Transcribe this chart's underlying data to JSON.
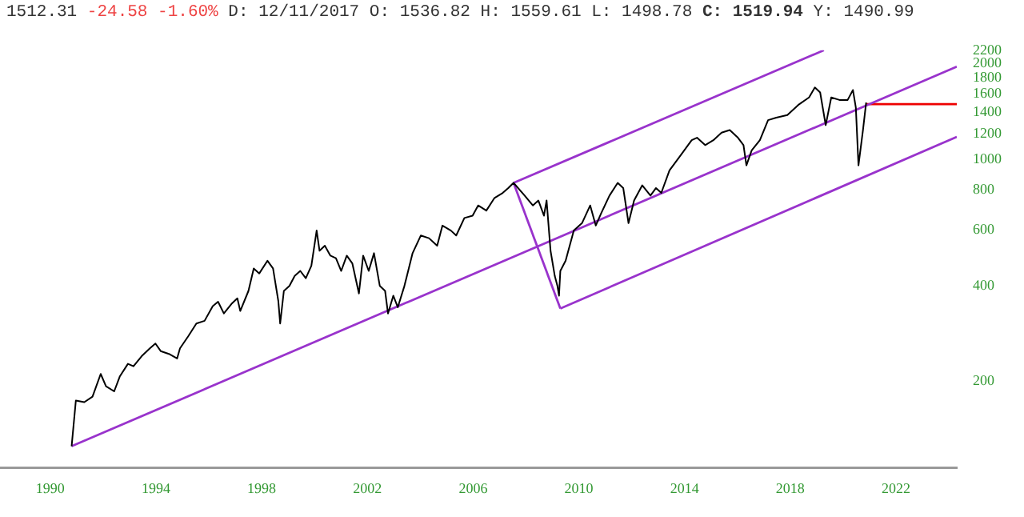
{
  "chart_data": {
    "type": "line",
    "title": "1512.31 -24.58 -1.60% D: 12/11/2017 O: 1536.82 H: 1559.61 L: 1498.78 C: 1519.94 Y: 1490.99",
    "xlim": [
      1988.1,
      2024.3
    ],
    "xticks": [
      1990,
      1994,
      1998,
      2002,
      2006,
      2010,
      2014,
      2018,
      2022
    ],
    "ylim": [
      107,
      2200
    ],
    "yticks": [
      200,
      400,
      600,
      800,
      1000,
      1200,
      1400,
      1600,
      1800,
      2000,
      2200
    ],
    "log": "y",
    "grid": false,
    "legend": false,
    "marker": "none",
    "line_style": "solid",
    "series": [
      {
        "color": "#000000",
        "x": [
          1990.81,
          1990.97,
          1991.29,
          1991.6,
          1991.91,
          1992.11,
          1992.42,
          1992.63,
          1992.94,
          1993.15,
          1993.46,
          1993.77,
          1993.98,
          1994.18,
          1994.49,
          1994.8,
          1994.91,
          1995.22,
          1995.53,
          1995.84,
          1996.15,
          1996.35,
          1996.57,
          1996.88,
          1997.08,
          1997.19,
          1997.5,
          1997.7,
          1997.91,
          1998.22,
          1998.43,
          1998.63,
          1998.7,
          1998.84,
          1999.05,
          1999.25,
          1999.46,
          1999.67,
          1999.88,
          2000.08,
          2000.19,
          2000.39,
          2000.6,
          2000.81,
          2001.01,
          2001.22,
          2001.43,
          2001.68,
          2001.84,
          2002.05,
          2002.25,
          2002.47,
          2002.67,
          2002.78,
          2002.98,
          2003.15,
          2003.4,
          2003.71,
          2004.02,
          2004.33,
          2004.64,
          2004.84,
          2005.16,
          2005.36,
          2005.67,
          2005.98,
          2006.19,
          2006.5,
          2006.81,
          2007.12,
          2007.33,
          2007.53,
          2007.95,
          2008.26,
          2008.47,
          2008.68,
          2008.78,
          2008.93,
          2009.09,
          2009.19,
          2009.25,
          2009.3,
          2009.5,
          2009.81,
          2010.12,
          2010.43,
          2010.64,
          2010.85,
          2011.16,
          2011.47,
          2011.68,
          2011.88,
          2012.09,
          2012.4,
          2012.71,
          2012.92,
          2013.12,
          2013.43,
          2013.85,
          2014.27,
          2014.47,
          2014.78,
          2015.09,
          2015.4,
          2015.71,
          2016.02,
          2016.23,
          2016.34,
          2016.54,
          2016.85,
          2017.16,
          2017.47,
          2017.89,
          2018.3,
          2018.71,
          2018.93,
          2019.13,
          2019.34,
          2019.55,
          2019.86,
          2020.17,
          2020.37,
          2020.48,
          2020.58,
          2020.75,
          2020.87
        ],
        "values": [
          125,
          174,
          172,
          179,
          211,
          193,
          186,
          207,
          227,
          223,
          240,
          254,
          263,
          249,
          244,
          236,
          254,
          277,
          304,
          310,
          345,
          356,
          327,
          352,
          365,
          333,
          385,
          453,
          437,
          479,
          453,
          358,
          304,
          385,
          399,
          429,
          445,
          422,
          462,
          596,
          515,
          534,
          497,
          488,
          445,
          497,
          470,
          378,
          497,
          445,
          506,
          399,
          385,
          327,
          372,
          342,
          399,
          506,
          575,
          564,
          534,
          618,
          596,
          575,
          653,
          664,
          715,
          689,
          755,
          783,
          811,
          842,
          768,
          715,
          741,
          664,
          741,
          515,
          429,
          399,
          372,
          445,
          479,
          596,
          629,
          715,
          618,
          677,
          768,
          842,
          811,
          629,
          741,
          827,
          768,
          811,
          783,
          922,
          1028,
          1147,
          1168,
          1107,
          1147,
          1211,
          1234,
          1168,
          1107,
          956,
          1066,
          1147,
          1326,
          1351,
          1376,
          1480,
          1563,
          1680,
          1621,
          1279,
          1563,
          1535,
          1535,
          1650,
          1453,
          956,
          1234,
          1506
        ]
      },
      {
        "color": "#9933cc",
        "x": [
          1990.81,
          2024.3
        ],
        "values": [
          125,
          1954
        ]
      },
      {
        "color": "#9933cc",
        "x": [
          2007.53,
          2019.27
        ],
        "values": [
          842,
          2200
        ]
      },
      {
        "color": "#9933cc",
        "x": [
          2007.53,
          2009.3
        ],
        "values": [
          842,
          339
        ]
      },
      {
        "color": "#9933cc",
        "x": [
          2009.3,
          2024.3
        ],
        "values": [
          339,
          1175
        ]
      },
      {
        "color": "#ee0000",
        "x": [
          2020.87,
          2024.3
        ],
        "values": [
          1490,
          1490
        ]
      }
    ]
  }
}
